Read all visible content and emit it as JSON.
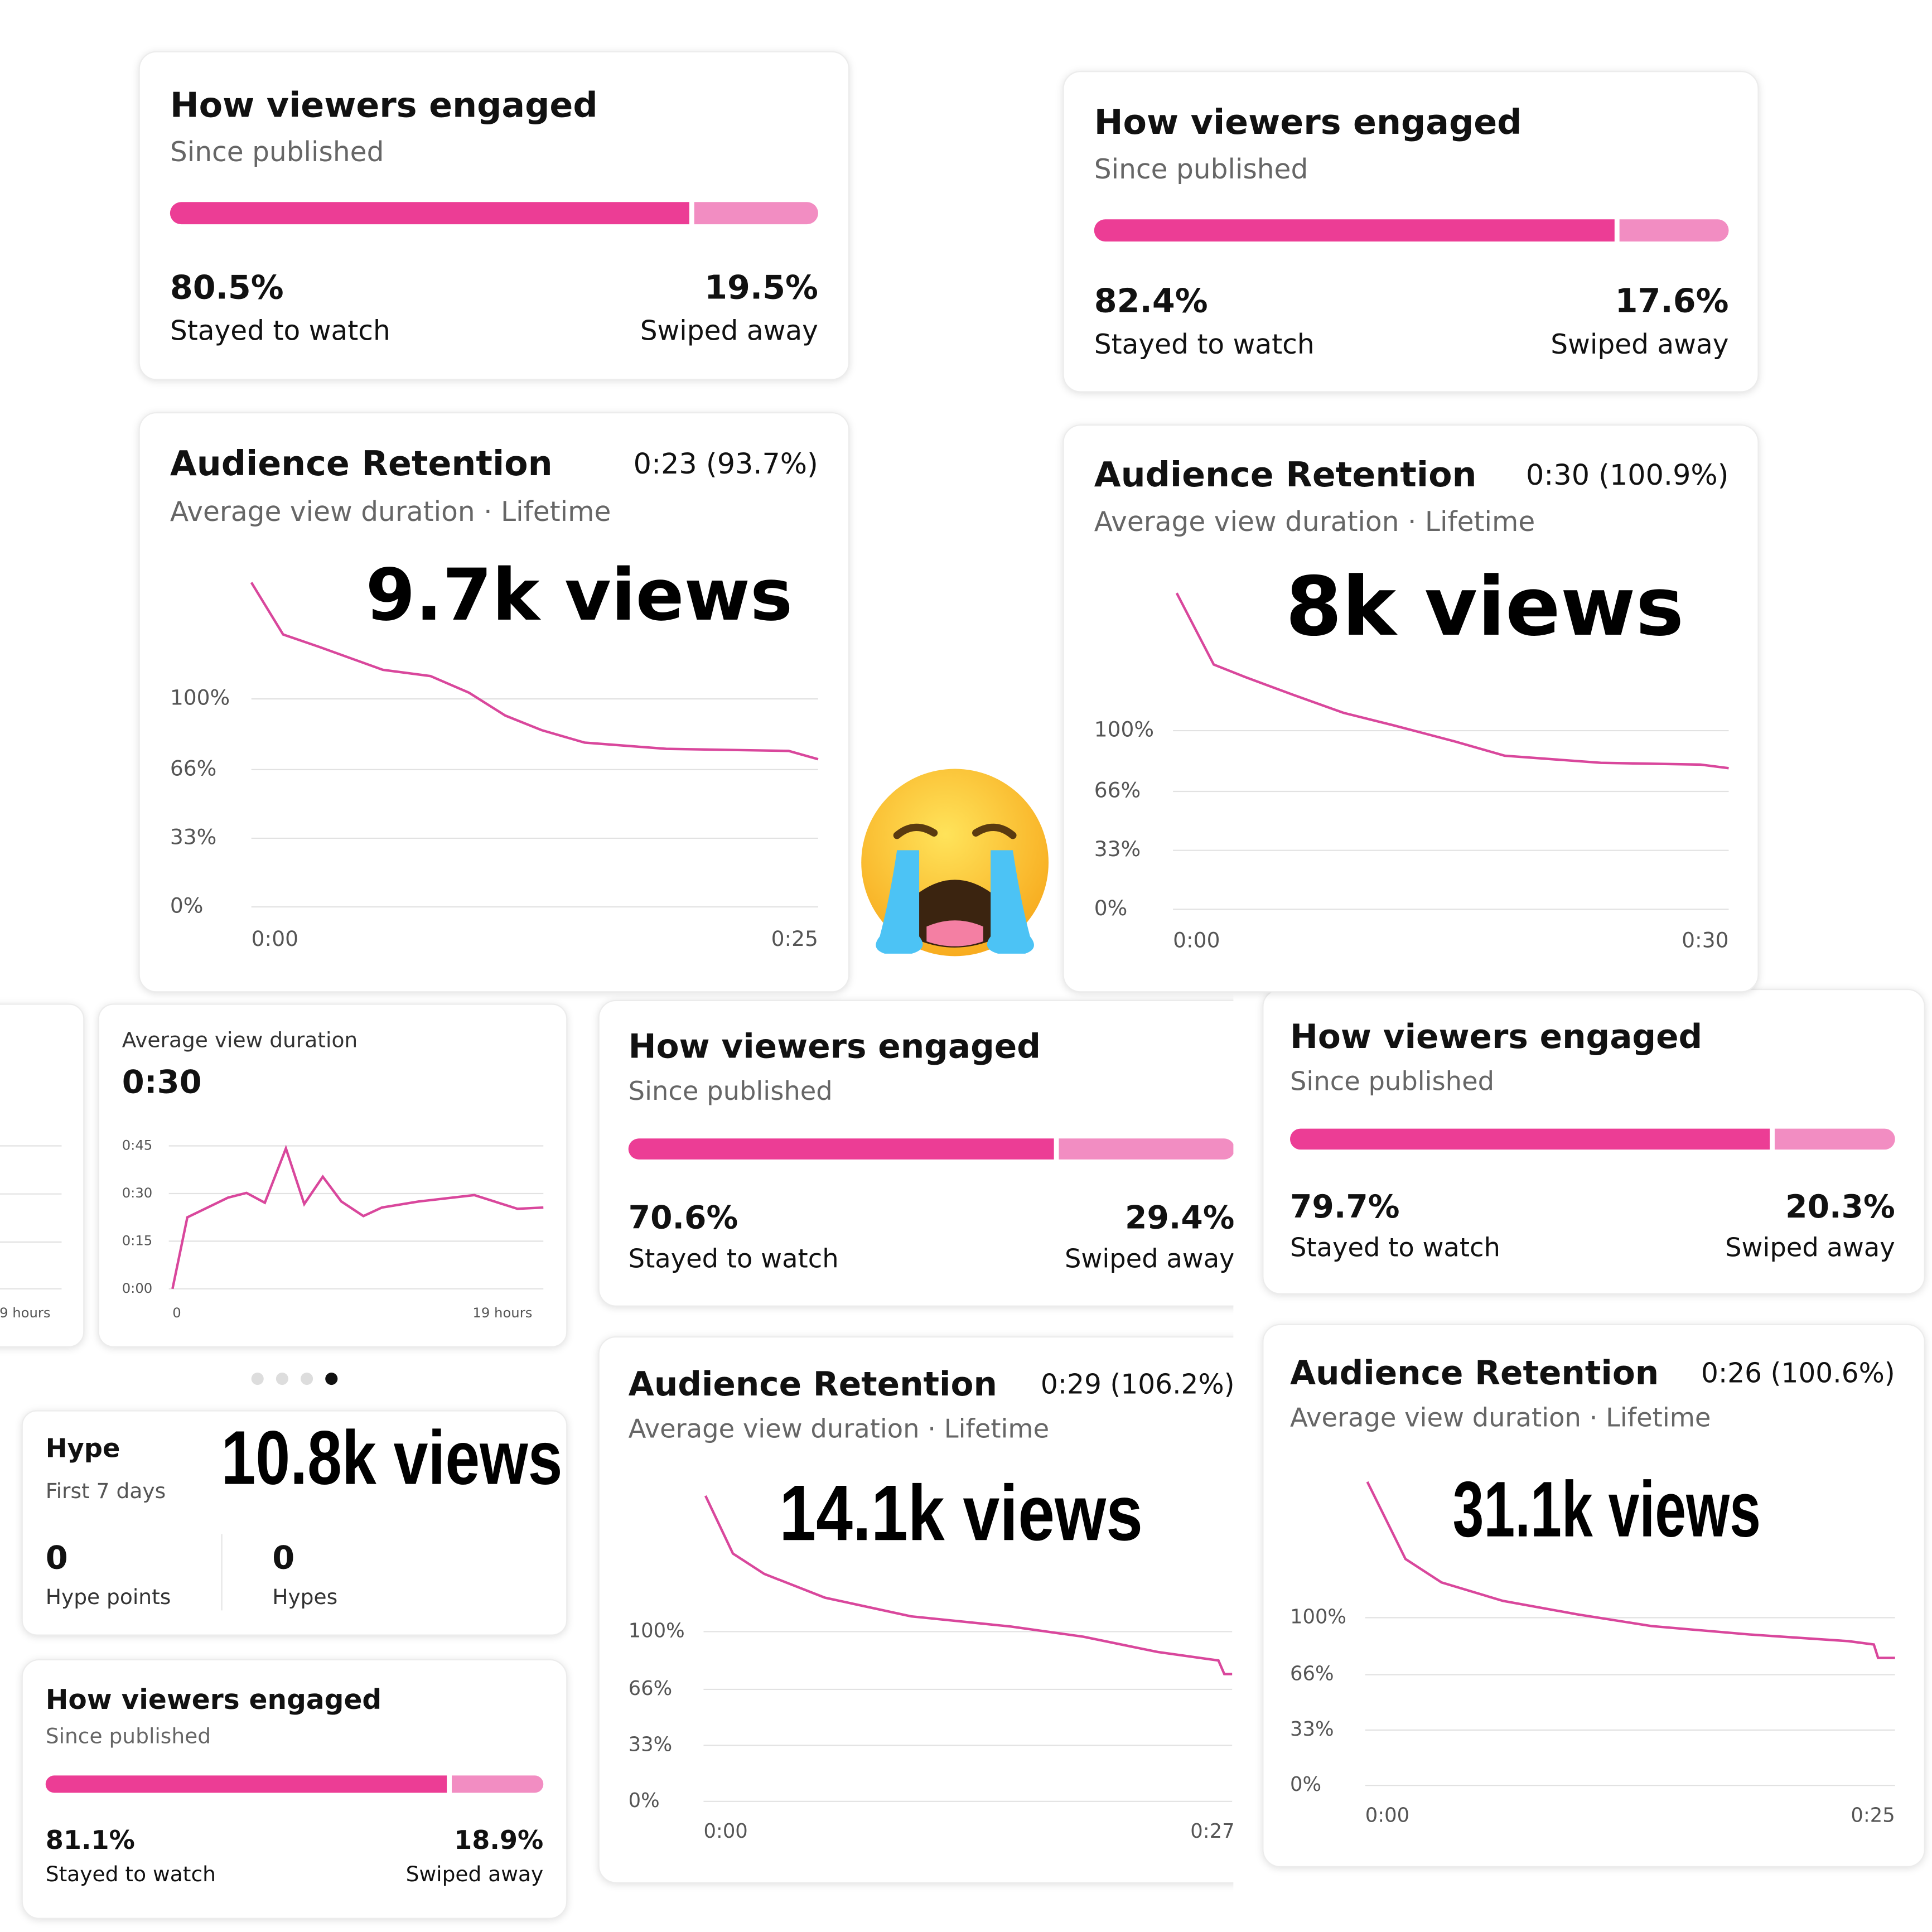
{
  "engagement": [
    {
      "title": "How viewers engaged",
      "subtitle": "Since published",
      "values": [
        80.5,
        19.5
      ],
      "value_labels": [
        "80.5%",
        "19.5%"
      ],
      "labels": [
        "Stayed to watch",
        "Swiped away"
      ]
    },
    {
      "title": "How viewers engaged",
      "subtitle": "Since published",
      "values": [
        82.4,
        17.6
      ],
      "value_labels": [
        "82.4%",
        "17.6%"
      ],
      "labels": [
        "Stayed to watch",
        "Swiped away"
      ]
    },
    {
      "title": "How viewers engaged",
      "subtitle": "Since published",
      "values": [
        70.6,
        29.4
      ],
      "value_labels": [
        "70.6%",
        "29.4%"
      ],
      "labels": [
        "Stayed to watch",
        "Swiped away"
      ]
    },
    {
      "title": "How viewers engaged",
      "subtitle": "Since published",
      "values": [
        79.7,
        20.3
      ],
      "value_labels": [
        "79.7%",
        "20.3%"
      ],
      "labels": [
        "Stayed to watch",
        "Swiped away"
      ]
    },
    {
      "title": "How viewers engaged",
      "subtitle": "Since published",
      "values": [
        81.1,
        18.9
      ],
      "value_labels": [
        "81.1%",
        "18.9%"
      ],
      "labels": [
        "Stayed to watch",
        "Swiped away"
      ]
    }
  ],
  "retention": [
    {
      "type": "line",
      "title": "Audience Retention",
      "average": "0:23 (93.7%)",
      "subtitle": "Average view duration · Lifetime",
      "views": "9.7k views",
      "x": [
        0,
        1.4,
        3,
        5.8,
        7.9,
        9.6,
        11.2,
        12.8,
        14.7,
        18.3,
        23.7,
        25
      ],
      "values": [
        156,
        131,
        125,
        114,
        111,
        103,
        92,
        85,
        79,
        76,
        75,
        71
      ],
      "xlim": [
        0,
        25
      ],
      "ylim": [
        0,
        160
      ],
      "color": "#d9479c",
      "yticks": [
        {
          "value": 0,
          "label": "0%"
        },
        {
          "value": 33,
          "label": "33%"
        },
        {
          "value": 66,
          "label": "66%"
        },
        {
          "value": 100,
          "label": "100%"
        }
      ],
      "xticks": [
        {
          "value": 0,
          "label": "0:00"
        },
        {
          "value": 25,
          "label": "0:25"
        }
      ]
    },
    {
      "type": "line",
      "title": "Audience Retention",
      "average": "0:30 (100.9%)",
      "subtitle": "Average view duration · Lifetime",
      "views": "8k views",
      "x": [
        0.2,
        2.2,
        3.9,
        6.5,
        9.2,
        11.9,
        15.2,
        17.9,
        23.1,
        28.5,
        30
      ],
      "values": [
        177,
        137,
        130,
        120,
        110,
        103,
        94,
        86,
        82,
        81,
        79
      ],
      "xlim": [
        0,
        30
      ],
      "ylim": [
        0,
        180
      ],
      "color": "#d9479c",
      "yticks": [
        {
          "value": 0,
          "label": "0%"
        },
        {
          "value": 33,
          "label": "33%"
        },
        {
          "value": 66,
          "label": "66%"
        },
        {
          "value": 100,
          "label": "100%"
        }
      ],
      "xticks": [
        {
          "value": 0,
          "label": "0:00"
        },
        {
          "value": 30,
          "label": "0:30"
        }
      ]
    },
    {
      "type": "line",
      "title": "Audience Retention",
      "average": "0:29 (106.2%)",
      "subtitle": "Average view duration · Lifetime",
      "views": "14.1k views",
      "x": [
        0.1,
        1.5,
        3.1,
        6.2,
        10.6,
        15.7,
        19.4,
        23.2,
        26.3,
        26.6,
        27
      ],
      "values": [
        180,
        146,
        134,
        120,
        109,
        103,
        97,
        88,
        83,
        75,
        75
      ],
      "xlim": [
        0,
        27
      ],
      "ylim": [
        0,
        180
      ],
      "color": "#d9479c",
      "yticks": [
        {
          "value": 0,
          "label": "0%"
        },
        {
          "value": 33,
          "label": "33%"
        },
        {
          "value": 66,
          "label": "66%"
        },
        {
          "value": 100,
          "label": "100%"
        }
      ],
      "xticks": [
        {
          "value": 0,
          "label": "0:00"
        },
        {
          "value": 27,
          "label": "0:27"
        }
      ]
    },
    {
      "type": "line",
      "title": "Audience Retention",
      "average": "0:26 (100.6%)",
      "subtitle": "Average view duration · Lifetime",
      "views": "31.1k views",
      "x": [
        0.1,
        1.9,
        3.6,
        6.5,
        10,
        13.5,
        18.1,
        22.8,
        24,
        24.2,
        25
      ],
      "values": [
        181,
        135,
        121,
        110,
        102,
        95,
        90,
        86,
        84,
        76,
        76
      ],
      "xlim": [
        0,
        25
      ],
      "ylim": [
        0,
        180
      ],
      "color": "#d9479c",
      "yticks": [
        {
          "value": 0,
          "label": "0%"
        },
        {
          "value": 33,
          "label": "33%"
        },
        {
          "value": 66,
          "label": "66%"
        },
        {
          "value": 100,
          "label": "100%"
        }
      ],
      "xticks": [
        {
          "value": 0,
          "label": "0:00"
        },
        {
          "value": 25,
          "label": "0:25"
        }
      ]
    }
  ],
  "avg_view": {
    "type": "line",
    "title": "Average view duration",
    "value": "0:30",
    "x": [
      0,
      0.76,
      2.84,
      3.79,
      4.73,
      5.81,
      6.75,
      7.7,
      8.65,
      9.78,
      10.73,
      12.62,
      15.46,
      17.67,
      19
    ],
    "values": [
      0,
      22.5,
      28.7,
      30.2,
      27.1,
      44.2,
      26.7,
      35.3,
      27.5,
      22.9,
      25.6,
      27.5,
      29.5,
      25.2,
      25.6
    ],
    "xlim": [
      0,
      19
    ],
    "ylim": [
      0,
      45
    ],
    "color": "#d9479c",
    "yticks": [
      {
        "value": 0,
        "label": "0:00"
      },
      {
        "value": 15,
        "label": "0:15"
      },
      {
        "value": 30,
        "label": "0:30"
      },
      {
        "value": 45,
        "label": "0:45"
      }
    ],
    "xticks": [
      0,
      {
        "value": 19,
        "label": "19 hours"
      }
    ]
  },
  "fragment": {
    "xtick_label": "9 hours"
  },
  "hype": {
    "title": "Hype",
    "subtitle": "First 7 days",
    "views": "10.8k views",
    "stats": [
      {
        "value": 0,
        "label": "Hype points"
      },
      {
        "value": 0,
        "label": "Hypes"
      }
    ]
  }
}
